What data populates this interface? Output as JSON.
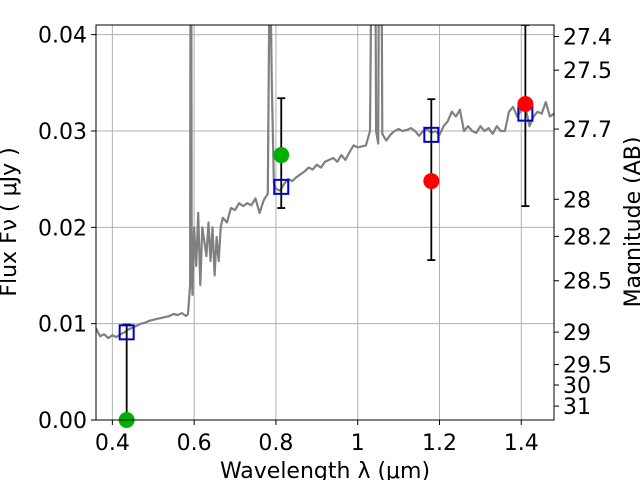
{
  "chart_data": {
    "type": "scatter",
    "xlabel": "Wavelength  λ (μm)",
    "ylabel": "Flux  Fν  ( μJy )",
    "y2label": "Magnitude (AB)",
    "xlim": [
      0.36,
      1.48
    ],
    "ylim": [
      0.0,
      0.041
    ],
    "grid": true,
    "x_ticks": [
      {
        "value": 0.4,
        "label": "0.4"
      },
      {
        "value": 0.6,
        "label": "0.6"
      },
      {
        "value": 0.8,
        "label": "0.8"
      },
      {
        "value": 1.0,
        "label": "1"
      },
      {
        "value": 1.2,
        "label": "1.2"
      },
      {
        "value": 1.4,
        "label": "1.4"
      }
    ],
    "y_ticks": [
      {
        "value": 0.0,
        "label": "0.00"
      },
      {
        "value": 0.01,
        "label": "0.01"
      },
      {
        "value": 0.02,
        "label": "0.02"
      },
      {
        "value": 0.03,
        "label": "0.03"
      },
      {
        "value": 0.04,
        "label": "0.04"
      }
    ],
    "y2_ticks": [
      {
        "value": 27.4,
        "label": "27.4"
      },
      {
        "value": 27.5,
        "label": "27.5"
      },
      {
        "value": 27.7,
        "label": "27.7"
      },
      {
        "value": 28.0,
        "label": "28"
      },
      {
        "value": 28.2,
        "label": "28.2"
      },
      {
        "value": 28.5,
        "label": "28.5"
      },
      {
        "value": 29.0,
        "label": "29"
      },
      {
        "value": 29.5,
        "label": "29.5"
      },
      {
        "value": 30.0,
        "label": "30"
      },
      {
        "value": 31.0,
        "label": "31"
      }
    ],
    "colors": {
      "spectrum": "#808080",
      "model": "#0000cc",
      "detection": "#ff0000",
      "green": "#00b000",
      "errorbar": "#000000",
      "grid": "#b0b0b0"
    },
    "spectrum": {
      "x": [
        0.36,
        0.37,
        0.38,
        0.39,
        0.4,
        0.41,
        0.42,
        0.43,
        0.44,
        0.45,
        0.46,
        0.47,
        0.48,
        0.49,
        0.5,
        0.51,
        0.52,
        0.53,
        0.54,
        0.55,
        0.56,
        0.57,
        0.58,
        0.585,
        0.59,
        0.592,
        0.594,
        0.596,
        0.6,
        0.605,
        0.61,
        0.615,
        0.62,
        0.625,
        0.63,
        0.635,
        0.64,
        0.645,
        0.65,
        0.655,
        0.66,
        0.665,
        0.67,
        0.68,
        0.69,
        0.7,
        0.71,
        0.72,
        0.73,
        0.74,
        0.75,
        0.76,
        0.77,
        0.78,
        0.785,
        0.79,
        0.795,
        0.8,
        0.81,
        0.82,
        0.83,
        0.84,
        0.85,
        0.86,
        0.87,
        0.88,
        0.89,
        0.9,
        0.91,
        0.92,
        0.93,
        0.94,
        0.95,
        0.96,
        0.97,
        0.98,
        0.99,
        1.0,
        1.02,
        1.03,
        1.04,
        1.045,
        1.05,
        1.055,
        1.06,
        1.07,
        1.08,
        1.09,
        1.1,
        1.11,
        1.12,
        1.13,
        1.14,
        1.15,
        1.16,
        1.17,
        1.18,
        1.19,
        1.2,
        1.21,
        1.22,
        1.23,
        1.24,
        1.25,
        1.26,
        1.27,
        1.28,
        1.29,
        1.3,
        1.31,
        1.32,
        1.33,
        1.34,
        1.35,
        1.36,
        1.37,
        1.38,
        1.39,
        1.4,
        1.41,
        1.42,
        1.43,
        1.44,
        1.45,
        1.46,
        1.47,
        1.48
      ],
      "y": [
        0.0095,
        0.0087,
        0.0089,
        0.0085,
        0.0088,
        0.0086,
        0.0089,
        0.0091,
        0.0094,
        0.0096,
        0.0098,
        0.01,
        0.0101,
        0.0103,
        0.0104,
        0.0105,
        0.0106,
        0.0107,
        0.0108,
        0.011,
        0.0109,
        0.0111,
        0.0108,
        0.011,
        0.014,
        0.08,
        0.015,
        0.013,
        0.02,
        0.016,
        0.0215,
        0.014,
        0.02,
        0.0185,
        0.017,
        0.0205,
        0.0165,
        0.02,
        0.015,
        0.019,
        0.0165,
        0.02,
        0.021,
        0.0205,
        0.022,
        0.0218,
        0.0225,
        0.0222,
        0.0225,
        0.0223,
        0.023,
        0.0215,
        0.0228,
        0.0235,
        0.05,
        0.035,
        0.0245,
        0.024,
        0.0238,
        0.0245,
        0.025,
        0.0248,
        0.0252,
        0.0255,
        0.0258,
        0.0262,
        0.026,
        0.0265,
        0.0262,
        0.0268,
        0.027,
        0.0272,
        0.0268,
        0.0275,
        0.027,
        0.0278,
        0.0285,
        0.0283,
        0.0285,
        0.03,
        0.08,
        0.03,
        0.0287,
        0.08,
        0.0297,
        0.029,
        0.0296,
        0.03,
        0.0302,
        0.03,
        0.0301,
        0.0303,
        0.03,
        0.0295,
        0.03,
        0.0302,
        0.0298,
        0.03,
        0.0296,
        0.0305,
        0.031,
        0.032,
        0.0315,
        0.0322,
        0.03,
        0.0305,
        0.03,
        0.0298,
        0.0305,
        0.03,
        0.0303,
        0.0297,
        0.0305,
        0.03,
        0.03,
        0.032,
        0.0325,
        0.0315,
        0.0322,
        0.0325,
        0.0305,
        0.0315,
        0.032,
        0.0318,
        0.033,
        0.0315,
        0.0318
      ]
    },
    "model_points": {
      "x": [
        0.435,
        0.813,
        1.18,
        1.41
      ],
      "y": [
        0.0091,
        0.0242,
        0.0296,
        0.0318
      ]
    },
    "detections": {
      "x": [
        0.435,
        0.813,
        1.18,
        1.41
      ],
      "y": [
        0.0,
        0.0275,
        0.0248,
        0.0328
      ],
      "colors": [
        "green",
        "green",
        "detection",
        "detection"
      ]
    },
    "errorbars": {
      "x": [
        0.435,
        0.813,
        1.18,
        1.41
      ],
      "low": [
        0.0,
        0.022,
        0.0166,
        0.0222
      ],
      "high": [
        0.0099,
        0.0334,
        0.0333,
        0.041
      ]
    }
  }
}
